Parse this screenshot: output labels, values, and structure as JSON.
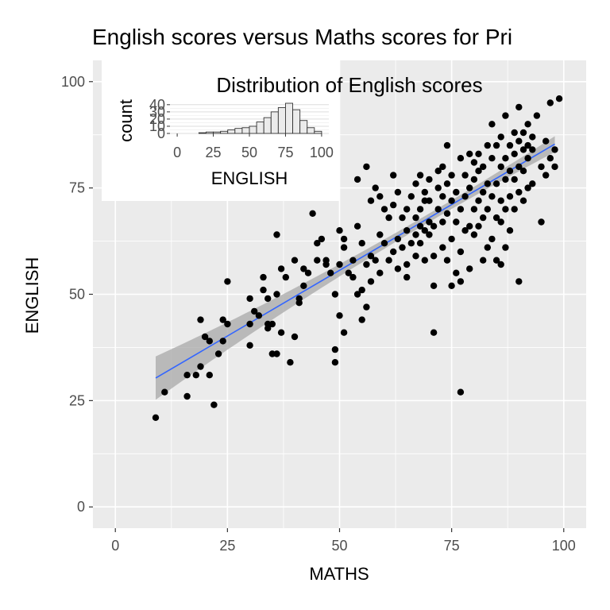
{
  "chart_data": [
    {
      "type": "scatter",
      "title": "English scores versus Maths scores for Pri",
      "xlabel": "MATHS",
      "ylabel": "ENGLISH",
      "xlim": [
        -5,
        105
      ],
      "ylim": [
        -5,
        105
      ],
      "xticks": [
        0,
        25,
        50,
        75,
        100
      ],
      "yticks": [
        0,
        25,
        50,
        75,
        100
      ],
      "grid": true,
      "background": "#ebebeb",
      "point_color": "#000000",
      "trend_color": "#3366ff",
      "band_color": "#a8a8a8",
      "trend_line": {
        "x": [
          9,
          98
        ],
        "y": [
          30.3,
          85.3
        ]
      },
      "points": [
        [
          9,
          21
        ],
        [
          11,
          27
        ],
        [
          16,
          26
        ],
        [
          16,
          31
        ],
        [
          18,
          31
        ],
        [
          19,
          33
        ],
        [
          19,
          44
        ],
        [
          20,
          40
        ],
        [
          21,
          39
        ],
        [
          21,
          31
        ],
        [
          22,
          24
        ],
        [
          23,
          36
        ],
        [
          24,
          39
        ],
        [
          24,
          44
        ],
        [
          25,
          43
        ],
        [
          25,
          53
        ],
        [
          30,
          38
        ],
        [
          30,
          43
        ],
        [
          30,
          49
        ],
        [
          31,
          46
        ],
        [
          32,
          45
        ],
        [
          33,
          51
        ],
        [
          33,
          54
        ],
        [
          34,
          42
        ],
        [
          34,
          43
        ],
        [
          34,
          49
        ],
        [
          35,
          36
        ],
        [
          35,
          43
        ],
        [
          36,
          50
        ],
        [
          36,
          64
        ],
        [
          36,
          36
        ],
        [
          37,
          41
        ],
        [
          37,
          56
        ],
        [
          38,
          54
        ],
        [
          39,
          34
        ],
        [
          40,
          40
        ],
        [
          40,
          58
        ],
        [
          41,
          48
        ],
        [
          41,
          49
        ],
        [
          42,
          52
        ],
        [
          42,
          56
        ],
        [
          43,
          55
        ],
        [
          44,
          69
        ],
        [
          45,
          58
        ],
        [
          45,
          62
        ],
        [
          46,
          63
        ],
        [
          47,
          57
        ],
        [
          47,
          58
        ],
        [
          48,
          55
        ],
        [
          49,
          50
        ],
        [
          49,
          34
        ],
        [
          49,
          37
        ],
        [
          50,
          45
        ],
        [
          50,
          57
        ],
        [
          50,
          65
        ],
        [
          51,
          41
        ],
        [
          51,
          61
        ],
        [
          51,
          63
        ],
        [
          52,
          55
        ],
        [
          53,
          54
        ],
        [
          53,
          58
        ],
        [
          54,
          50
        ],
        [
          54,
          66
        ],
        [
          54,
          77
        ],
        [
          55,
          44
        ],
        [
          55,
          51
        ],
        [
          55,
          62
        ],
        [
          56,
          47
        ],
        [
          56,
          57
        ],
        [
          56,
          80
        ],
        [
          57,
          53
        ],
        [
          57,
          59
        ],
        [
          57,
          72
        ],
        [
          58,
          75
        ],
        [
          58,
          58
        ],
        [
          59,
          55
        ],
        [
          59,
          64
        ],
        [
          59,
          73
        ],
        [
          60,
          62
        ],
        [
          60,
          70
        ],
        [
          61,
          68
        ],
        [
          61,
          58
        ],
        [
          62,
          60
        ],
        [
          62,
          71
        ],
        [
          62,
          78
        ],
        [
          63,
          56
        ],
        [
          63,
          63
        ],
        [
          63,
          74
        ],
        [
          64,
          68
        ],
        [
          64,
          61
        ],
        [
          65,
          54
        ],
        [
          65,
          57
        ],
        [
          65,
          65
        ],
        [
          65,
          70
        ],
        [
          66,
          62
        ],
        [
          66,
          73
        ],
        [
          67,
          59
        ],
        [
          67,
          64
        ],
        [
          67,
          68
        ],
        [
          67,
          76
        ],
        [
          68,
          62
        ],
        [
          68,
          66
        ],
        [
          68,
          70
        ],
        [
          68,
          78
        ],
        [
          69,
          58
        ],
        [
          69,
          65
        ],
        [
          69,
          72
        ],
        [
          69,
          74
        ],
        [
          70,
          64
        ],
        [
          70,
          67
        ],
        [
          70,
          77
        ],
        [
          70,
          72
        ],
        [
          71,
          52
        ],
        [
          71,
          41
        ],
        [
          71,
          59
        ],
        [
          71,
          66
        ],
        [
          72,
          70
        ],
        [
          72,
          75
        ],
        [
          72,
          79
        ],
        [
          73,
          61
        ],
        [
          73,
          67
        ],
        [
          73,
          73
        ],
        [
          73,
          80
        ],
        [
          74,
          58
        ],
        [
          74,
          69
        ],
        [
          74,
          76
        ],
        [
          74,
          85
        ],
        [
          75,
          52
        ],
        [
          75,
          63
        ],
        [
          75,
          72
        ],
        [
          75,
          78
        ],
        [
          76,
          55
        ],
        [
          76,
          67
        ],
        [
          76,
          74
        ],
        [
          77,
          27
        ],
        [
          77,
          53
        ],
        [
          77,
          60
        ],
        [
          77,
          70
        ],
        [
          77,
          82
        ],
        [
          78,
          65
        ],
        [
          78,
          73
        ],
        [
          78,
          78
        ],
        [
          79,
          56
        ],
        [
          79,
          66
        ],
        [
          79,
          75
        ],
        [
          79,
          83
        ],
        [
          80,
          64
        ],
        [
          80,
          70
        ],
        [
          80,
          77
        ],
        [
          80,
          81
        ],
        [
          81,
          66
        ],
        [
          81,
          72
        ],
        [
          81,
          79
        ],
        [
          81,
          83
        ],
        [
          82,
          58
        ],
        [
          82,
          68
        ],
        [
          82,
          74
        ],
        [
          82,
          80
        ],
        [
          83,
          61
        ],
        [
          83,
          70
        ],
        [
          83,
          76
        ],
        [
          83,
          85
        ],
        [
          84,
          63
        ],
        [
          84,
          73
        ],
        [
          84,
          82
        ],
        [
          84,
          90
        ],
        [
          85,
          58
        ],
        [
          85,
          68
        ],
        [
          85,
          76
        ],
        [
          85,
          85
        ],
        [
          86,
          57
        ],
        [
          86,
          67
        ],
        [
          86,
          72
        ],
        [
          86,
          80
        ],
        [
          86,
          87
        ],
        [
          87,
          61
        ],
        [
          87,
          70
        ],
        [
          87,
          77
        ],
        [
          87,
          82
        ],
        [
          87,
          92
        ],
        [
          88,
          65
        ],
        [
          88,
          73
        ],
        [
          88,
          79
        ],
        [
          88,
          85
        ],
        [
          89,
          70
        ],
        [
          89,
          77
        ],
        [
          89,
          83
        ],
        [
          89,
          88
        ],
        [
          90,
          53
        ],
        [
          90,
          74
        ],
        [
          90,
          80
        ],
        [
          90,
          86
        ],
        [
          90,
          94
        ],
        [
          91,
          72
        ],
        [
          91,
          79
        ],
        [
          91,
          84
        ],
        [
          91,
          88
        ],
        [
          92,
          75
        ],
        [
          92,
          82
        ],
        [
          92,
          85
        ],
        [
          92,
          90
        ],
        [
          93,
          76
        ],
        [
          93,
          84
        ],
        [
          93,
          87
        ],
        [
          94,
          92
        ],
        [
          95,
          80
        ],
        [
          95,
          67
        ],
        [
          96,
          78
        ],
        [
          96,
          86
        ],
        [
          97,
          82
        ],
        [
          97,
          95
        ],
        [
          98,
          84
        ],
        [
          98,
          80
        ],
        [
          99,
          96
        ]
      ]
    },
    {
      "type": "bar",
      "title": "Distribution of English scores",
      "xlabel": "ENGLISH",
      "ylabel": "count",
      "xlim": [
        -5,
        105
      ],
      "ylim": [
        0,
        42
      ],
      "xticks": [
        0,
        25,
        50,
        75,
        100
      ],
      "yticks": [
        0,
        10,
        20,
        30,
        40
      ],
      "bin_width": 5,
      "bins": [
        {
          "start": 15,
          "count": 1
        },
        {
          "start": 20,
          "count": 2
        },
        {
          "start": 25,
          "count": 2
        },
        {
          "start": 30,
          "count": 3
        },
        {
          "start": 35,
          "count": 5
        },
        {
          "start": 40,
          "count": 7
        },
        {
          "start": 45,
          "count": 8
        },
        {
          "start": 50,
          "count": 10
        },
        {
          "start": 55,
          "count": 16
        },
        {
          "start": 60,
          "count": 22
        },
        {
          "start": 65,
          "count": 30
        },
        {
          "start": 70,
          "count": 36
        },
        {
          "start": 75,
          "count": 42
        },
        {
          "start": 80,
          "count": 33
        },
        {
          "start": 85,
          "count": 18
        },
        {
          "start": 90,
          "count": 8
        },
        {
          "start": 95,
          "count": 3
        }
      ],
      "bar_fill": "#ebebeb",
      "bar_stroke": "#333333"
    }
  ]
}
